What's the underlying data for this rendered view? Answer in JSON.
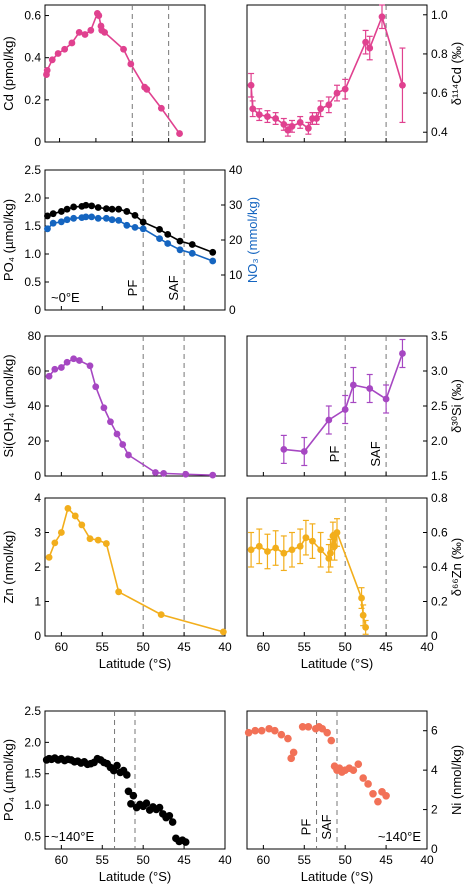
{
  "colors": {
    "cd": "#e0418f",
    "si": "#a647c2",
    "zn": "#f2ae1c",
    "po4": "#000000",
    "no3": "#1565c0",
    "ni": "#f27157",
    "front_line": "#777777"
  },
  "chart_data": [
    {
      "id": "cd",
      "type": "line",
      "ylabel": "Cd (pmol/kg)",
      "xlim": [
        62,
        40
      ],
      "ylim": [
        0,
        0.65
      ],
      "yticks": [
        "0",
        "0.2",
        "0.4",
        "0.6"
      ],
      "fronts": [
        50,
        45
      ],
      "series": [
        {
          "color_key": "cd",
          "x": [
            61.8,
            61.7,
            61,
            60.2,
            59.3,
            58.3,
            57.3,
            56.5,
            55.7,
            54.8,
            54.6,
            54.3,
            54.2,
            53.8,
            51.2,
            50.2,
            48.3,
            48,
            46,
            43.5
          ],
          "y": [
            0.32,
            0.34,
            0.39,
            0.42,
            0.44,
            0.47,
            0.52,
            0.51,
            0.53,
            0.61,
            0.6,
            0.55,
            0.53,
            0.52,
            0.44,
            0.37,
            0.26,
            0.25,
            0.16,
            0.04
          ]
        }
      ]
    },
    {
      "id": "d114cd",
      "type": "line",
      "ylabel": "δ¹¹⁴Cd (‰)",
      "xlim": [
        62,
        40
      ],
      "ylim": [
        0.35,
        1.05
      ],
      "yticks": [
        "0.4",
        "0.6",
        "0.8",
        "1.0"
      ],
      "fronts": [
        50,
        45
      ],
      "series": [
        {
          "color_key": "cd",
          "x": [
            61.5,
            61.3,
            60.5,
            59.5,
            58.5,
            57.5,
            57,
            56.5,
            55.5,
            54.5,
            54,
            53.5,
            53,
            52,
            51,
            50,
            47.5,
            47,
            45.5,
            43
          ],
          "y": [
            0.64,
            0.52,
            0.49,
            0.48,
            0.47,
            0.44,
            0.41,
            0.43,
            0.45,
            0.42,
            0.47,
            0.47,
            0.52,
            0.54,
            0.6,
            0.62,
            0.86,
            0.83,
            0.99,
            0.64
          ],
          "err": [
            0.06,
            0.04,
            0.03,
            0.03,
            0.03,
            0.03,
            0.03,
            0.03,
            0.03,
            0.03,
            0.03,
            0.03,
            0.04,
            0.04,
            0.04,
            0.05,
            0.06,
            0.06,
            0.06,
            0.19
          ]
        }
      ]
    },
    {
      "id": "po4no3",
      "type": "line",
      "ylabel": "PO₄ (µmol/kg)",
      "ylabel2": "NO₃ (mmol/kg)",
      "annotation": "~0°E",
      "front_labels": [
        "PF",
        "SAF"
      ],
      "xlim": [
        62,
        40
      ],
      "ylim": [
        0,
        2.5
      ],
      "yticks": [
        "0",
        "0.5",
        "1.0",
        "1.5",
        "2.0",
        "2.5"
      ],
      "y2ticks": [
        "0",
        "10",
        "20",
        "30",
        "40"
      ],
      "fronts": [
        50,
        45
      ],
      "series": [
        {
          "color_key": "po4",
          "x": [
            61.7,
            61,
            60,
            59.3,
            58.5,
            57.5,
            57,
            56.3,
            55.5,
            54.5,
            53.8,
            53,
            52,
            51,
            50,
            48,
            47,
            45.5,
            44,
            41.5
          ],
          "y": [
            1.68,
            1.72,
            1.76,
            1.8,
            1.84,
            1.85,
            1.87,
            1.86,
            1.83,
            1.81,
            1.8,
            1.8,
            1.76,
            1.69,
            1.57,
            1.44,
            1.35,
            1.23,
            1.17,
            1.03
          ]
        },
        {
          "color_key": "no3",
          "x": [
            61.7,
            61,
            60,
            59.3,
            58.5,
            57.5,
            57,
            56.3,
            55.5,
            54.5,
            53.8,
            53,
            52,
            51,
            50,
            48,
            47,
            45.5,
            44,
            41.5
          ],
          "y": [
            23.2,
            24.8,
            25.2,
            25.8,
            26.2,
            26.4,
            26.6,
            26.6,
            26.2,
            26.2,
            25.8,
            25.6,
            24.2,
            23.6,
            23.2,
            20.4,
            19,
            17.2,
            16.2,
            14
          ]
        }
      ]
    },
    {
      "id": "sioh4",
      "type": "line",
      "ylabel": "Si(OH)₄ (µmol/kg)",
      "xlim": [
        62,
        40
      ],
      "ylim": [
        0,
        80
      ],
      "yticks": [
        "0",
        "20",
        "40",
        "60",
        "80"
      ],
      "fronts": [
        50,
        45
      ],
      "series": [
        {
          "color_key": "si",
          "x": [
            61.5,
            60.8,
            60,
            59.3,
            58.5,
            57.8,
            56.5,
            55.8,
            54.8,
            54,
            53.2,
            52.5,
            51.8,
            48.5,
            47.5,
            44.8,
            41.5
          ],
          "y": [
            57,
            61,
            62,
            65,
            67,
            66,
            63,
            51,
            39,
            31,
            24,
            18,
            12,
            2,
            1.5,
            1,
            0.5
          ]
        }
      ]
    },
    {
      "id": "d30si",
      "type": "line",
      "ylabel": "δ³⁰Si (‰)",
      "front_labels": [
        "PF",
        "SAF"
      ],
      "xlim": [
        62,
        40
      ],
      "ylim": [
        1.5,
        3.5
      ],
      "yticks": [
        "1.5",
        "2.0",
        "2.5",
        "3.0",
        "3.5"
      ],
      "fronts": [
        50,
        45
      ],
      "series": [
        {
          "color_key": "si",
          "x": [
            57.5,
            55,
            52,
            50,
            49,
            47,
            45,
            43
          ],
          "y": [
            1.88,
            1.85,
            2.3,
            2.45,
            2.8,
            2.75,
            2.6,
            3.25
          ],
          "err": [
            0.2,
            0.2,
            0.2,
            0.2,
            0.25,
            0.2,
            0.2,
            0.2
          ]
        }
      ]
    },
    {
      "id": "zn",
      "type": "line",
      "ylabel": "Zn (nmol/kg)",
      "xlabel": "Latitude (°S)",
      "xticks": [
        "60",
        "55",
        "50",
        "45",
        "40"
      ],
      "xlim": [
        62,
        40
      ],
      "ylim": [
        0,
        4
      ],
      "yticks": [
        "0",
        "1",
        "2",
        "3",
        "4"
      ],
      "fronts": [
        50,
        45
      ],
      "series": [
        {
          "color_key": "zn",
          "x": [
            61.5,
            60.8,
            60,
            59.2,
            58.3,
            57.5,
            56.5,
            55.5,
            54.5,
            53,
            47.8,
            40.2
          ],
          "y": [
            2.28,
            2.7,
            3.0,
            3.7,
            3.48,
            3.22,
            2.82,
            2.78,
            2.68,
            1.28,
            0.62,
            0.12
          ]
        }
      ]
    },
    {
      "id": "d66zn",
      "type": "line",
      "ylabel": "δ⁶⁶Zn (‰)",
      "xlabel": "Latitude (°S)",
      "xticks": [
        "60",
        "55",
        "50",
        "45",
        "40"
      ],
      "xlim": [
        62,
        40
      ],
      "ylim": [
        0,
        0.8
      ],
      "yticks": [
        "0",
        "0.2",
        "0.4",
        "0.6",
        "0.8"
      ],
      "fronts": [
        50,
        45
      ],
      "series": [
        {
          "color_key": "zn",
          "x": [
            61.5,
            60.5,
            59.5,
            58.5,
            57.5,
            56.5,
            55.5,
            54.8,
            54,
            53,
            52,
            51.8,
            51.5,
            51.3,
            51,
            48,
            47.8,
            47.5
          ],
          "y": [
            0.5,
            0.52,
            0.49,
            0.51,
            0.48,
            0.5,
            0.52,
            0.57,
            0.55,
            0.5,
            0.45,
            0.48,
            0.58,
            0.52,
            0.6,
            0.22,
            0.12,
            0.05
          ],
          "err": [
            0.1,
            0.1,
            0.1,
            0.1,
            0.1,
            0.1,
            0.1,
            0.1,
            0.1,
            0.1,
            0.08,
            0.08,
            0.08,
            0.08,
            0.08,
            0.06,
            0.06,
            0.04
          ]
        }
      ]
    },
    {
      "id": "po4_140e",
      "type": "scatter",
      "ylabel": "PO₄ (µmol/kg)",
      "xlabel": "Latitude (°S)",
      "annotation": "~140°E",
      "xticks": [
        "60",
        "55",
        "50",
        "45",
        "40"
      ],
      "xlim": [
        62,
        40
      ],
      "ylim": [
        0.3,
        2.5
      ],
      "yticks": [
        "0.5",
        "1.0",
        "1.5",
        "2.0",
        "2.5"
      ],
      "fronts": [
        53.5,
        51
      ],
      "series": [
        {
          "color_key": "po4",
          "x": [
            61.8,
            61.5,
            61.2,
            60.8,
            60.4,
            60,
            59.6,
            59.2,
            58.8,
            58.4,
            58,
            57.6,
            57.2,
            56.8,
            56.4,
            56,
            55.6,
            55.2,
            54.8,
            54.4,
            54,
            53.6,
            53.2,
            52.8,
            52.4,
            52,
            51.8,
            51.5,
            51.2,
            50.8,
            50.4,
            50,
            49.6,
            49.2,
            48.8,
            48.4,
            48,
            47.6,
            47.2,
            46.8,
            46.4,
            46,
            45.6,
            45.2,
            44.8
          ],
          "y": [
            1.72,
            1.74,
            1.73,
            1.75,
            1.72,
            1.74,
            1.71,
            1.73,
            1.72,
            1.69,
            1.7,
            1.67,
            1.69,
            1.65,
            1.66,
            1.68,
            1.74,
            1.72,
            1.68,
            1.66,
            1.6,
            1.55,
            1.63,
            1.52,
            1.55,
            1.48,
            1.22,
            1.02,
            1.15,
            0.96,
            1.01,
            0.98,
            1.03,
            0.92,
            0.97,
            0.93,
            0.96,
            0.86,
            0.8,
            0.83,
            0.73,
            0.47,
            0.42,
            0.44,
            0.41
          ]
        }
      ]
    },
    {
      "id": "ni_140e",
      "type": "scatter",
      "ylabel": "Ni (nmol/kg)",
      "xlabel": "Latitude (°S)",
      "annotation": "~140°E",
      "front_labels": [
        "PF",
        "SAF"
      ],
      "xticks": [
        "60",
        "55",
        "50",
        "45",
        "40"
      ],
      "xlim": [
        62,
        40
      ],
      "ylim": [
        0,
        7
      ],
      "yticks": [
        "0",
        "2",
        "4",
        "6"
      ],
      "fronts": [
        53.5,
        51
      ],
      "series": [
        {
          "color_key": "ni",
          "x": [
            61.8,
            61,
            60.2,
            59.3,
            58.6,
            57.8,
            57,
            56.6,
            56.3,
            55.2,
            54.5,
            53.6,
            53.2,
            52.8,
            52.2,
            51.7,
            51.3,
            51,
            50.7,
            50.4,
            50,
            49.5,
            49,
            48.4,
            47.8,
            47.2,
            46.6,
            46,
            45.5,
            45
          ],
          "y": [
            5.9,
            6.0,
            6.0,
            6.1,
            6.0,
            5.8,
            5.6,
            4.6,
            4.9,
            6.2,
            6.2,
            6.1,
            6.2,
            6.1,
            5.9,
            5.5,
            4.2,
            4.0,
            4.1,
            3.9,
            4.0,
            4.1,
            4.0,
            4.3,
            3.6,
            3.3,
            2.8,
            2.4,
            2.9,
            2.7
          ]
        }
      ]
    }
  ]
}
